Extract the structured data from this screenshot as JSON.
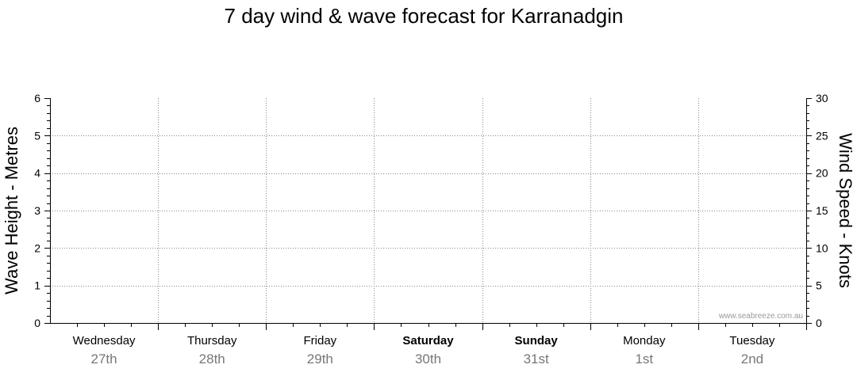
{
  "title": "7 day wind & wave forecast for Karranadgin",
  "credit": "www.seabreeze.com.au",
  "chart_data": {
    "type": "line",
    "title": "7 day wind & wave forecast for Karranadgin",
    "y_left": {
      "label": "Wave Height - Metres",
      "range": [
        0,
        6
      ],
      "ticks": [
        "0",
        "1",
        "2",
        "3",
        "4",
        "5",
        "6"
      ]
    },
    "y_right": {
      "label": "Wind Speed - Knots",
      "range": [
        0,
        30
      ],
      "ticks": [
        "0",
        "5",
        "10",
        "15",
        "20",
        "25",
        "30"
      ]
    },
    "days": [
      {
        "name": "Wednesday",
        "date": "27th",
        "bold": false
      },
      {
        "name": "Thursday",
        "date": "28th",
        "bold": false
      },
      {
        "name": "Friday",
        "date": "29th",
        "bold": false
      },
      {
        "name": "Saturday",
        "date": "30th",
        "bold": true
      },
      {
        "name": "Sunday",
        "date": "31st",
        "bold": true
      },
      {
        "name": "Monday",
        "date": "1st",
        "bold": false
      },
      {
        "name": "Tuesday",
        "date": "2nd",
        "bold": false
      }
    ],
    "series": [],
    "grid": true
  }
}
